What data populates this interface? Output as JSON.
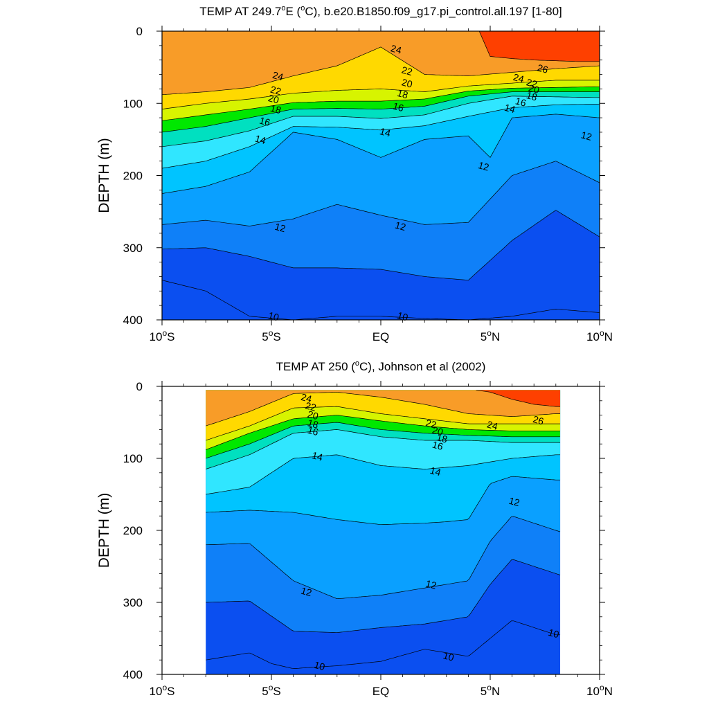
{
  "chart_data": [
    {
      "type": "contour",
      "title": "TEMP AT 249.7°E (°C), b.e20.B1850.f09_g17.pi_control.all.197 [1-80]",
      "title_parts": [
        "TEMP AT 249.7",
        "o",
        "E (",
        "o",
        "C), b.e20.B1850.f09_g17.pi_control.all.197 [1-80]"
      ],
      "ylabel": "DEPTH (m)",
      "xlim": [
        -10,
        10
      ],
      "ylim": [
        400,
        0
      ],
      "y_reversed": true,
      "data_xrange": [
        -10,
        10
      ],
      "x_ticks": [
        {
          "value": -10,
          "label": "10°S"
        },
        {
          "value": -5,
          "label": "5°S"
        },
        {
          "value": 0,
          "label": "EQ"
        },
        {
          "value": 5,
          "label": "5°N"
        },
        {
          "value": 10,
          "label": "10°N"
        }
      ],
      "y_ticks": [
        0,
        100,
        200,
        300,
        400
      ],
      "levels": [
        10,
        11,
        12,
        13,
        14,
        15,
        16,
        17,
        18,
        19,
        20,
        21,
        22,
        23,
        24,
        25,
        26
      ],
      "isotherms": [
        {
          "temp": 10,
          "x": [
            -10,
            -8,
            -6,
            -4,
            -2,
            0,
            2,
            4,
            6,
            8,
            10
          ],
          "y": [
            345,
            360,
            395,
            400,
            395,
            395,
            398,
            400,
            395,
            385,
            390
          ]
        },
        {
          "temp": 11,
          "x": [
            -10,
            -8,
            -6,
            -4,
            -2,
            0,
            2,
            4,
            6,
            8,
            10
          ],
          "y": [
            302,
            300,
            312,
            328,
            328,
            330,
            340,
            345,
            290,
            248,
            285
          ]
        },
        {
          "temp": 12,
          "x": [
            -10,
            -8,
            -6,
            -4,
            -2,
            0,
            2,
            4,
            6,
            8,
            10
          ],
          "y": [
            268,
            262,
            270,
            260,
            240,
            255,
            268,
            265,
            200,
            180,
            210
          ]
        },
        {
          "temp": 13,
          "x": [
            -10,
            -8,
            -6,
            -4,
            -2,
            0,
            2,
            4,
            5,
            6,
            8,
            10
          ],
          "y": [
            225,
            215,
            195,
            140,
            150,
            175,
            150,
            145,
            175,
            120,
            115,
            120
          ]
        },
        {
          "temp": 14,
          "x": [
            -10,
            -8,
            -6,
            -4,
            -2,
            0,
            2,
            4,
            6,
            8,
            10
          ],
          "y": [
            190,
            180,
            160,
            132,
            133,
            137,
            131,
            118,
            106,
            102,
            101
          ]
        },
        {
          "temp": 16,
          "x": [
            -10,
            -8,
            -6,
            -4,
            -2,
            0,
            2,
            4,
            6,
            8,
            10
          ],
          "y": [
            160,
            152,
            138,
            118,
            118,
            121,
            116,
            100,
            90,
            91,
            92
          ]
        },
        {
          "temp": 18,
          "x": [
            -10,
            -8,
            -6,
            -4,
            -2,
            0,
            2,
            4,
            6,
            8,
            10
          ],
          "y": [
            140,
            132,
            120,
            108,
            107,
            108,
            104,
            90,
            84,
            84,
            84
          ]
        },
        {
          "temp": 20,
          "x": [
            -10,
            -8,
            -6,
            -4,
            -2,
            0,
            2,
            4,
            6,
            8,
            10
          ],
          "y": [
            124,
            116,
            108,
            99,
            97,
            97,
            94,
            83,
            79,
            78,
            77
          ]
        },
        {
          "temp": 22,
          "x": [
            -10,
            -8,
            -6,
            -4,
            -2,
            0,
            2,
            4,
            6,
            8,
            10
          ],
          "y": [
            108,
            100,
            94,
            86,
            82,
            80,
            84,
            76,
            72,
            68,
            68
          ]
        },
        {
          "temp": 24,
          "x": [
            -10,
            -8,
            -6,
            -4,
            -2,
            0,
            2,
            4,
            6,
            8,
            10
          ],
          "y": [
            88,
            84,
            78,
            62,
            48,
            22,
            60,
            62,
            57,
            52,
            48
          ]
        },
        {
          "temp": 26,
          "x": [
            4.5,
            5,
            6,
            7,
            8,
            9,
            10
          ],
          "y": [
            0,
            35,
            38,
            40,
            41,
            42,
            42
          ]
        }
      ],
      "labels": [
        {
          "text": "24",
          "x": -4.7,
          "y": 62
        },
        {
          "text": "22",
          "x": -4.8,
          "y": 82
        },
        {
          "text": "20",
          "x": -4.9,
          "y": 94
        },
        {
          "text": "18",
          "x": -4.8,
          "y": 108
        },
        {
          "text": "16",
          "x": -5.3,
          "y": 125
        },
        {
          "text": "14",
          "x": -5.5,
          "y": 150
        },
        {
          "text": "24",
          "x": 0.7,
          "y": 25
        },
        {
          "text": "22",
          "x": 1.2,
          "y": 55
        },
        {
          "text": "20",
          "x": 1.2,
          "y": 72
        },
        {
          "text": "18",
          "x": 1.0,
          "y": 87
        },
        {
          "text": "16",
          "x": 0.8,
          "y": 105
        },
        {
          "text": "14",
          "x": 0.2,
          "y": 140
        },
        {
          "text": "24",
          "x": 6.3,
          "y": 65
        },
        {
          "text": "26",
          "x": 7.4,
          "y": 52
        },
        {
          "text": "22",
          "x": 6.9,
          "y": 72
        },
        {
          "text": "20",
          "x": 7.0,
          "y": 80
        },
        {
          "text": "18",
          "x": 6.9,
          "y": 90
        },
        {
          "text": "16",
          "x": 6.4,
          "y": 98
        },
        {
          "text": "14",
          "x": 5.9,
          "y": 107
        },
        {
          "text": "12",
          "x": 9.4,
          "y": 145
        },
        {
          "text": "12",
          "x": 4.7,
          "y": 187
        },
        {
          "text": "12",
          "x": -4.6,
          "y": 272
        },
        {
          "text": "12",
          "x": 0.9,
          "y": 270
        },
        {
          "text": "10",
          "x": -4.9,
          "y": 395
        },
        {
          "text": "10",
          "x": 1.0,
          "y": 395
        }
      ]
    },
    {
      "type": "contour",
      "title": "TEMP AT 250 (°C), Johnson et al (2002)",
      "title_parts": [
        "TEMP AT 250 (",
        "o",
        "C), Johnson et al (2002)"
      ],
      "ylabel": "DEPTH (m)",
      "xlim": [
        -10,
        10
      ],
      "ylim": [
        400,
        0
      ],
      "y_reversed": true,
      "data_xrange": [
        -8,
        8.2
      ],
      "data_yrange": [
        5,
        400
      ],
      "x_ticks": [
        {
          "value": -10,
          "label": "10°S"
        },
        {
          "value": -5,
          "label": "5°S"
        },
        {
          "value": 0,
          "label": "EQ"
        },
        {
          "value": 5,
          "label": "5°N"
        },
        {
          "value": 10,
          "label": "10°N"
        }
      ],
      "y_ticks": [
        0,
        100,
        200,
        300,
        400
      ],
      "levels": [
        10,
        11,
        12,
        13,
        14,
        15,
        16,
        17,
        18,
        19,
        20,
        21,
        22,
        23,
        24,
        25,
        26
      ],
      "isotherms": [
        {
          "temp": 10,
          "x": [
            -8,
            -6,
            -5,
            -4,
            -2,
            0,
            2,
            4,
            5,
            6,
            8,
            8.2
          ],
          "y": [
            380,
            370,
            385,
            392,
            388,
            382,
            365,
            375,
            350,
            325,
            345,
            345
          ]
        },
        {
          "temp": 11,
          "x": [
            -8,
            -6,
            -4,
            -2,
            0,
            2,
            4,
            5,
            6,
            8,
            8.2
          ],
          "y": [
            300,
            298,
            340,
            342,
            335,
            330,
            320,
            275,
            240,
            260,
            262
          ]
        },
        {
          "temp": 12,
          "x": [
            -8,
            -6,
            -4,
            -2,
            0,
            2,
            4,
            5,
            6,
            8,
            8.2
          ],
          "y": [
            220,
            218,
            270,
            295,
            290,
            280,
            270,
            215,
            180,
            200,
            202
          ]
        },
        {
          "temp": 13,
          "x": [
            -8,
            -6,
            -4,
            -2,
            0,
            2,
            3,
            4,
            5,
            6,
            8,
            8.2
          ],
          "y": [
            175,
            172,
            175,
            185,
            192,
            190,
            188,
            185,
            135,
            125,
            130,
            130
          ]
        },
        {
          "temp": 14,
          "x": [
            -8,
            -6,
            -4,
            -2,
            0,
            2,
            4,
            6,
            8,
            8.2
          ],
          "y": [
            150,
            140,
            100,
            95,
            110,
            115,
            110,
            100,
            95,
            95
          ]
        },
        {
          "temp": 16,
          "x": [
            -8,
            -6,
            -4,
            -2,
            0,
            2,
            4,
            6,
            8,
            8.2
          ],
          "y": [
            115,
            95,
            65,
            60,
            70,
            75,
            75,
            78,
            78,
            78
          ]
        },
        {
          "temp": 18,
          "x": [
            -8,
            -6,
            -4,
            -2,
            0,
            2,
            4,
            6,
            8,
            8.2
          ],
          "y": [
            100,
            80,
            55,
            50,
            60,
            65,
            68,
            70,
            70,
            70
          ]
        },
        {
          "temp": 20,
          "x": [
            -8,
            -6,
            -4,
            -2,
            0,
            2,
            4,
            6,
            8,
            8.2
          ],
          "y": [
            88,
            65,
            45,
            40,
            48,
            55,
            60,
            62,
            62,
            62
          ]
        },
        {
          "temp": 22,
          "x": [
            -8,
            -6,
            -4,
            -2,
            0,
            2,
            4,
            6,
            8,
            8.2
          ],
          "y": [
            75,
            55,
            30,
            28,
            38,
            45,
            52,
            52,
            52,
            52
          ]
        },
        {
          "temp": 24,
          "x": [
            -8,
            -6,
            -4,
            -2,
            0,
            2,
            4,
            6,
            8,
            8.2
          ],
          "y": [
            55,
            35,
            10,
            8,
            15,
            25,
            38,
            42,
            38,
            38
          ]
        },
        {
          "temp": 26,
          "x": [
            4.3,
            5,
            6,
            7,
            8,
            8.2
          ],
          "y": [
            5,
            8,
            18,
            25,
            28,
            28
          ]
        }
      ],
      "labels": [
        {
          "text": "24",
          "x": -3.4,
          "y": 16
        },
        {
          "text": "22",
          "x": -3.2,
          "y": 28
        },
        {
          "text": "20",
          "x": -3.1,
          "y": 40
        },
        {
          "text": "18",
          "x": -3.1,
          "y": 52
        },
        {
          "text": "16",
          "x": -3.1,
          "y": 62
        },
        {
          "text": "14",
          "x": -2.9,
          "y": 97
        },
        {
          "text": "22",
          "x": 2.3,
          "y": 52
        },
        {
          "text": "20",
          "x": 2.6,
          "y": 62
        },
        {
          "text": "18",
          "x": 2.8,
          "y": 72
        },
        {
          "text": "16",
          "x": 2.6,
          "y": 82
        },
        {
          "text": "14",
          "x": 2.5,
          "y": 118
        },
        {
          "text": "24",
          "x": 5.1,
          "y": 54
        },
        {
          "text": "26",
          "x": 7.2,
          "y": 47
        },
        {
          "text": "12",
          "x": 6.1,
          "y": 160
        },
        {
          "text": "12",
          "x": -3.4,
          "y": 285
        },
        {
          "text": "12",
          "x": 2.3,
          "y": 275
        },
        {
          "text": "10",
          "x": 7.9,
          "y": 343
        },
        {
          "text": "10",
          "x": 3.1,
          "y": 375
        },
        {
          "text": "10",
          "x": -2.8,
          "y": 388
        }
      ]
    }
  ],
  "colors": {
    "10": "#0b4ff0",
    "11": "#0f80f8",
    "12": "#0aa0ff",
    "13": "#00c4ff",
    "14": "#30e6ff",
    "15": "#00f0ec",
    "16": "#00e0c0",
    "17": "#00d080",
    "18": "#00e800",
    "19": "#7cf000",
    "20": "#d7f400",
    "21": "#ffff00",
    "22": "#ffd900",
    "23": "#fbb634",
    "24": "#f89c28",
    "25": "#f0820c",
    "26": "#fe4000"
  }
}
